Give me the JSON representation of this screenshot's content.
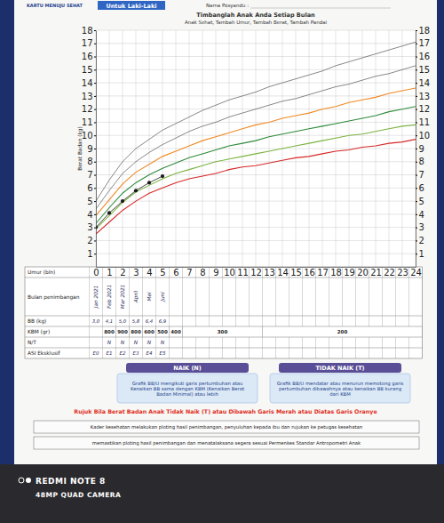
{
  "header": {
    "card_title": "KARTU MENUJU SEHAT",
    "gender": "Untuk Laki-Laki",
    "posyandu_label": "Nama Posyandu :"
  },
  "chart_data": {
    "type": "line",
    "title": "Timbanglah Anak Anda Setiap Bulan",
    "subtitle": "Anak Sehat, Tambah Umur, Tambah Berat, Tambah Pandai",
    "x_label": "Umur (bln)",
    "y_label": "Berat Badan (kg)",
    "x": [
      0,
      1,
      2,
      3,
      4,
      5,
      6,
      7,
      8,
      9,
      10,
      11,
      12,
      13,
      14,
      15,
      16,
      17,
      18,
      19,
      20,
      21,
      22,
      23,
      24
    ],
    "xlim": [
      0,
      24
    ],
    "xticks": [
      0,
      1,
      2,
      3,
      4,
      5,
      6,
      7,
      8,
      9,
      10,
      11,
      12,
      13,
      14,
      15,
      16,
      17,
      18,
      19,
      20,
      21,
      22,
      23,
      24
    ],
    "ylim": [
      0,
      18
    ],
    "yticks": [
      1,
      2,
      3,
      4,
      5,
      6,
      7,
      8,
      9,
      10,
      11,
      12,
      13,
      14,
      15,
      16,
      17,
      18
    ],
    "grid": true,
    "series": [
      {
        "color": "#555555",
        "values": [
          5.0,
          6.6,
          8.0,
          9.0,
          9.7,
          10.4,
          10.9,
          11.4,
          11.9,
          12.3,
          12.7,
          13.0,
          13.3,
          13.7,
          14.0,
          14.3,
          14.6,
          14.9,
          15.3,
          15.6,
          15.9,
          16.2,
          16.5,
          16.8,
          17.1
        ]
      },
      {
        "color": "#555555",
        "values": [
          4.4,
          5.8,
          7.1,
          8.0,
          8.7,
          9.3,
          9.8,
          10.3,
          10.7,
          11.0,
          11.4,
          11.7,
          12.0,
          12.3,
          12.6,
          12.8,
          13.1,
          13.4,
          13.7,
          13.9,
          14.2,
          14.5,
          14.7,
          15.0,
          15.3
        ]
      },
      {
        "color": "#f08a24",
        "values": [
          3.9,
          5.1,
          6.3,
          7.2,
          7.8,
          8.4,
          8.8,
          9.2,
          9.6,
          9.9,
          10.2,
          10.5,
          10.8,
          11.0,
          11.3,
          11.5,
          11.7,
          12.0,
          12.2,
          12.5,
          12.7,
          12.9,
          13.2,
          13.4,
          13.6
        ]
      },
      {
        "color": "#2e8b3a",
        "values": [
          3.3,
          4.5,
          5.6,
          6.4,
          7.0,
          7.5,
          7.9,
          8.3,
          8.6,
          8.9,
          9.2,
          9.4,
          9.6,
          9.9,
          10.1,
          10.3,
          10.5,
          10.7,
          10.9,
          11.1,
          11.3,
          11.5,
          11.8,
          12.0,
          12.2
        ]
      },
      {
        "color": "#7cb342",
        "values": [
          2.9,
          3.9,
          4.9,
          5.7,
          6.2,
          6.7,
          7.1,
          7.4,
          7.7,
          8.0,
          8.2,
          8.4,
          8.6,
          8.8,
          9.0,
          9.2,
          9.4,
          9.6,
          9.8,
          10.0,
          10.1,
          10.3,
          10.5,
          10.7,
          10.8
        ]
      },
      {
        "color": "#d62828",
        "values": [
          2.5,
          3.4,
          4.3,
          5.0,
          5.6,
          6.0,
          6.4,
          6.7,
          6.9,
          7.1,
          7.4,
          7.6,
          7.7,
          7.9,
          8.1,
          8.3,
          8.4,
          8.6,
          8.8,
          8.9,
          9.1,
          9.2,
          9.4,
          9.5,
          9.7
        ]
      },
      {
        "color": "#1a1a1a",
        "marker": "circle",
        "line_style": "solid",
        "x": [
          0,
          1,
          2,
          3,
          4,
          5
        ],
        "values": [
          3.0,
          4.1,
          5.0,
          5.8,
          6.4,
          6.9
        ],
        "value_labels": [
          "3,0",
          "4,1",
          "5,0",
          "5,8",
          "6,4",
          "6,9"
        ]
      }
    ]
  },
  "table": {
    "row_labels": [
      "Bulan penimbangan",
      "BB (kg)",
      "KBM (gr)",
      "N/T",
      "ASI Eksklusif"
    ],
    "bulan_penimbangan": [
      "Jan 2021",
      "Feb 2021",
      "Mar 2021",
      "April",
      "Mei",
      "Juni"
    ],
    "kbm": [
      {
        "value": 800,
        "months": [
          1,
          1
        ]
      },
      {
        "value": 900,
        "months": [
          2,
          2
        ]
      },
      {
        "value": 800,
        "months": [
          3,
          3
        ]
      },
      {
        "value": 600,
        "months": [
          4,
          4
        ]
      },
      {
        "value": 500,
        "months": [
          5,
          5
        ]
      },
      {
        "value": 400,
        "months": [
          6,
          6
        ]
      },
      {
        "value": 300,
        "months": [
          7,
          12
        ]
      },
      {
        "value": 200,
        "months": [
          13,
          24
        ]
      }
    ],
    "nt": [
      null,
      "N",
      "N",
      "N",
      "N",
      "N"
    ],
    "asi_eksklusif": [
      "E0",
      "E1",
      "E2",
      "E3",
      "E4",
      "E5"
    ]
  },
  "status_boxes": [
    {
      "title": "NAIK (N)",
      "text": "Grafik BB/U mengikuti garis pertumbuhan atau Kenaikan BB sama dengan KBM (Kenaikan Berat Badan Minimal) atau lebih"
    },
    {
      "title": "TIDAK NAIK (T)",
      "text": "Grafik BB/U mendatar atau menurun memotong garis pertumbuhan dibawahnya atau kenaikan BB kurang dari KBM"
    }
  ],
  "referral_note": "Rujuk Bila Berat Badan Anak Tidak Naik (T) atau Dibawah Garis Merah atau Diatas Garis Oranye",
  "footer": [
    "Kader kesehatan melakukan ploting hasil penimbangan, penyuluhan kepada ibu dan rujukan ke petugas kesehatan",
    "memastikan ploting hasil penimbangan dan menatalaksana segera sesuai Permenkes Standar Antropometri Anak"
  ],
  "watermark": [
    "REDMI NOTE 8",
    "48MP QUAD CAMERA"
  ]
}
